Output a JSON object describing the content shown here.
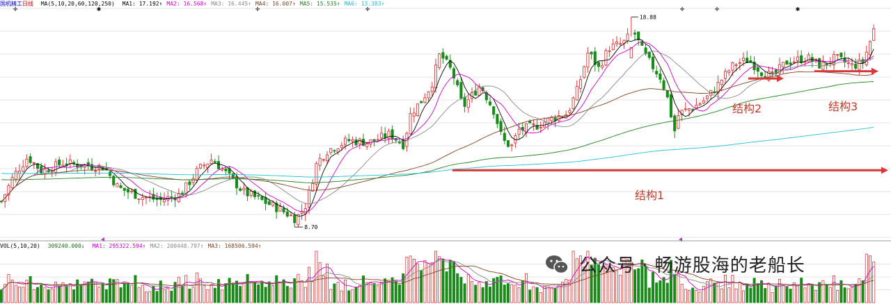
{
  "header": {
    "stock_name": "国机精工",
    "period": "日线",
    "ma_params": "MA(5,10,20,60,120,250)",
    "ma_values": [
      {
        "label": "MA1: 17.192↑",
        "color": "#000000"
      },
      {
        "label": "MA2: 16.568↑",
        "color": "#cc00cc"
      },
      {
        "label": "MA3: 16.445↑",
        "color": "#888888"
      },
      {
        "label": "MA4: 16.007↑",
        "color": "#804020"
      },
      {
        "label": "MA5: 15.535↑",
        "color": "#208020"
      },
      {
        "label": "MA6: 13.383↑",
        "color": "#20c0d0"
      }
    ]
  },
  "volume_header": {
    "params": "VOL(5,10,20)",
    "vol_value": "309240.000↓",
    "ma_values": [
      {
        "label": "MA1: 295322.594↑",
        "color": "#cc00cc"
      },
      {
        "label": "MA2: 200448.797↑",
        "color": "#888888"
      },
      {
        "label": "MA3: 168506.594↑",
        "color": "#804020"
      }
    ]
  },
  "labels": {
    "high": "18.88",
    "low": "8.70",
    "structure1": "结构1",
    "structure2": "结构2",
    "structure3": "结构3"
  },
  "watermark": {
    "text": "公众号 · 畅游股海的老船长",
    "icon": "wechat-icon"
  },
  "colors": {
    "up": "#d43a3a",
    "down": "#1a8a1a",
    "arrow": "#d43a3a",
    "grid": "#e4e4e4"
  },
  "chart_data": {
    "type": "candlestick",
    "price_range": [
      8.2,
      19.3
    ],
    "high_price": 18.88,
    "low_price": 8.7,
    "moving_averages": [
      "MA5",
      "MA10",
      "MA20",
      "MA60",
      "MA120",
      "MA250"
    ],
    "annotations": [
      {
        "text": "结构1",
        "price": 11.45
      },
      {
        "text": "结构2",
        "price": 15.9
      },
      {
        "text": "结构3",
        "price": 16.25
      }
    ]
  }
}
